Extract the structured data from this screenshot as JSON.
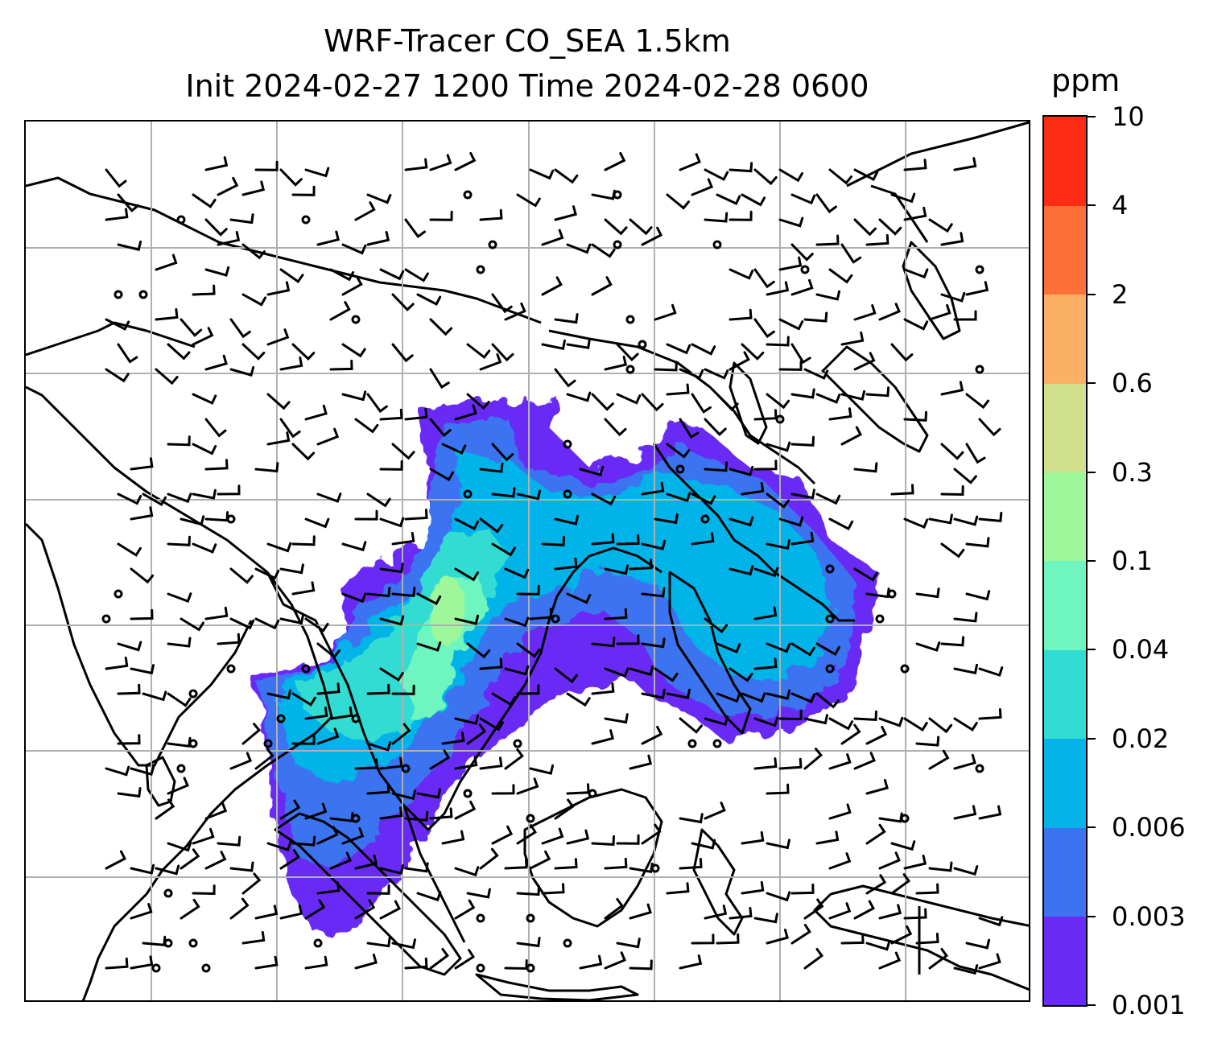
{
  "title": {
    "line1": "WRF-Tracer CO_SEA 1.5km",
    "line2": "Init 2024-02-27 1200 Time 2024-02-28 0600"
  },
  "colorbar": {
    "unit": "ppm",
    "levels": [
      "0.001",
      "0.003",
      "0.006",
      "0.02",
      "0.04",
      "0.1",
      "0.3",
      "0.6",
      "2",
      "4",
      "10"
    ],
    "colors": [
      "#6a2cf5",
      "#3b73f0",
      "#06b4ea",
      "#31dcd2",
      "#6ef5c0",
      "#9ef79a",
      "#d1e08a",
      "#fbb065",
      "#fd7038",
      "#fb2b14"
    ]
  },
  "map": {
    "gridlines": true,
    "wind_barbs": true,
    "coastlines": true
  }
}
